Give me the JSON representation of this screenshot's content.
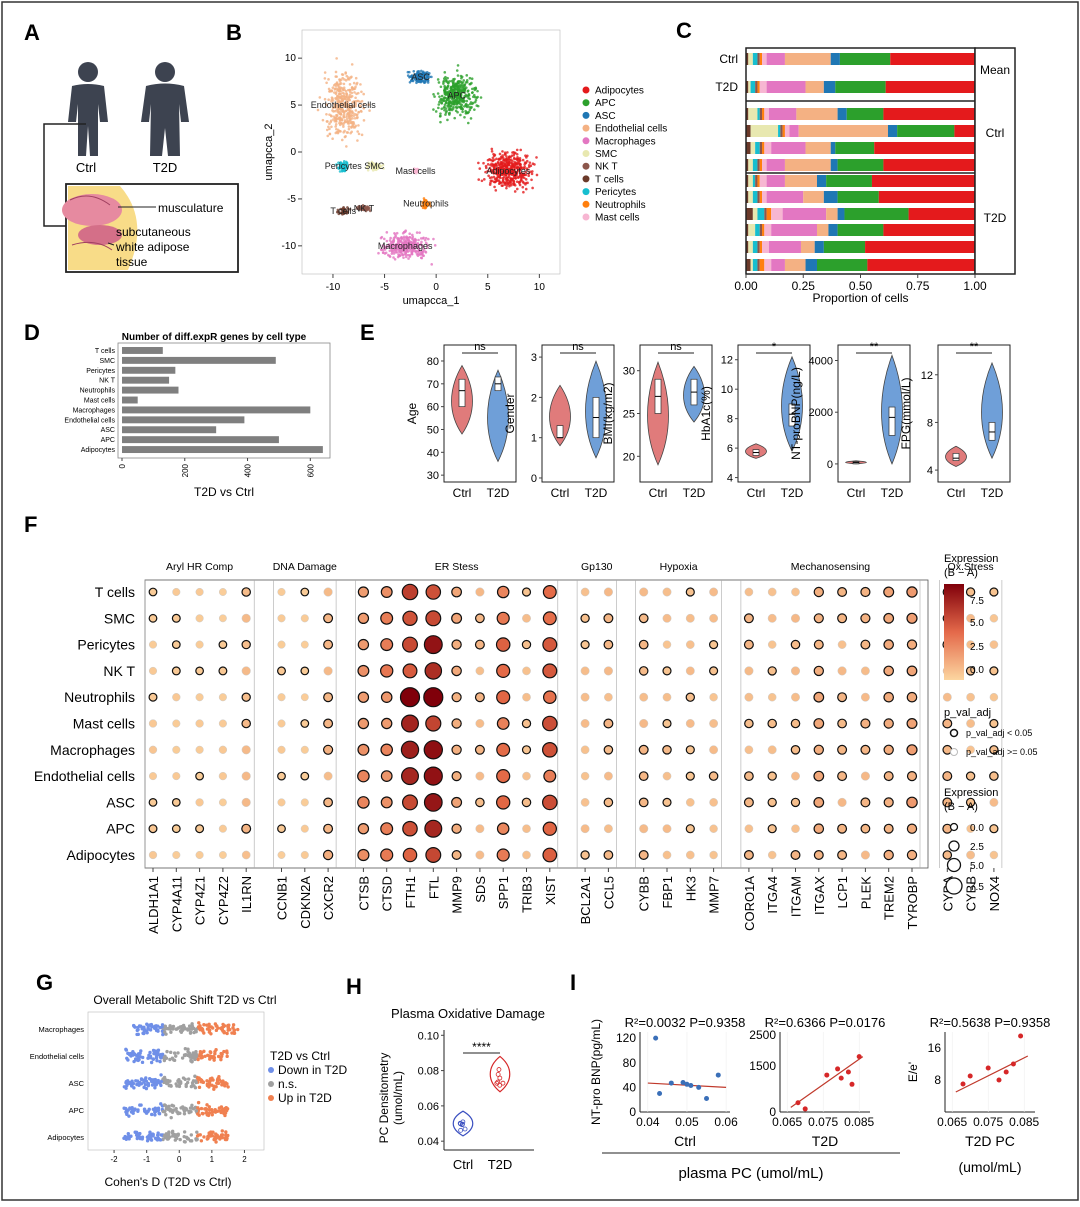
{
  "figure": {
    "panel_labels": [
      "A",
      "B",
      "C",
      "D",
      "E",
      "F",
      "G",
      "H",
      "I"
    ]
  },
  "panelA": {
    "person_labels": [
      "Ctrl",
      "T2D"
    ],
    "tissue_labels": [
      "musculature",
      "subcutaneous",
      "white adipose",
      "tissue"
    ]
  },
  "chart_data": [
    {
      "panel": "B",
      "type": "scatter",
      "title": "",
      "xlabel": "umapcca_1",
      "ylabel": "umapcca_2",
      "xlim": [
        -13,
        12
      ],
      "ylim": [
        -13,
        13
      ],
      "xticks": [
        -10,
        -5,
        0,
        5,
        10
      ],
      "yticks": [
        10,
        5,
        0,
        -5,
        -10
      ],
      "clusters": [
        {
          "name": "Adipocytes",
          "color": "#e41a1c",
          "center": [
            7,
            -2
          ]
        },
        {
          "name": "APC",
          "color": "#2ca02c",
          "center": [
            2,
            6
          ]
        },
        {
          "name": "ASC",
          "color": "#1f77b4",
          "center": [
            -1.5,
            8
          ]
        },
        {
          "name": "Endothelial cells",
          "color": "#f4b183",
          "center": [
            -9,
            5
          ]
        },
        {
          "name": "Macrophages",
          "color": "#e377c2",
          "center": [
            -3,
            -10
          ]
        },
        {
          "name": "SMC",
          "color": "#e8e8b0",
          "center": [
            -6,
            -1.5
          ]
        },
        {
          "name": "NK T",
          "color": "#8c564b",
          "center": [
            -7,
            -6
          ]
        },
        {
          "name": "T cells",
          "color": "#6b3a2a",
          "center": [
            -9,
            -6.3
          ]
        },
        {
          "name": "Pericytes",
          "color": "#17becf",
          "center": [
            -9,
            -1.5
          ]
        },
        {
          "name": "Neutrophils",
          "color": "#ff7f0e",
          "center": [
            -1,
            -5.5
          ]
        },
        {
          "name": "Mast cells",
          "color": "#f7b6d2",
          "center": [
            -2,
            -2
          ]
        }
      ],
      "legend": [
        "Adipocytes",
        "APC",
        "ASC",
        "Endothelial cells",
        "Macrophages",
        "SMC",
        "NK T",
        "T cells",
        "Pericytes",
        "Neutrophils",
        "Mast cells"
      ]
    },
    {
      "panel": "C",
      "type": "bar",
      "orientation": "horizontal-stacked",
      "xlabel": "Proportion of cells",
      "xticks": [
        "0.00",
        "0.25",
        "0.50",
        "0.75",
        "1.00"
      ],
      "xlim": [
        0,
        1
      ],
      "ylabel_top": [
        "Ctrl",
        "T2D"
      ],
      "group_labels": [
        "Mean",
        "Ctrl",
        "T2D"
      ],
      "categories": [
        "T cells",
        "SMC",
        "Pericytes",
        "NK T",
        "Neutrophils",
        "Mast cells",
        "Macrophages",
        "Endothelial cells",
        "ASC",
        "APC",
        "Adipocytes"
      ],
      "colors": [
        "#6b3a2a",
        "#e8e8b0",
        "#17becf",
        "#8c564b",
        "#ff7f0e",
        "#f7b6d2",
        "#e377c2",
        "#f4b183",
        "#1f77b4",
        "#2ca02c",
        "#e41a1c"
      ],
      "rows": [
        {
          "group": "Mean",
          "label": "Ctrl",
          "values": [
            0.01,
            0.02,
            0.02,
            0.01,
            0.01,
            0.02,
            0.08,
            0.2,
            0.04,
            0.22,
            0.37
          ]
        },
        {
          "group": "Mean",
          "label": "T2D",
          "values": [
            0.01,
            0.01,
            0.02,
            0.01,
            0.01,
            0.03,
            0.17,
            0.08,
            0.05,
            0.22,
            0.39
          ]
        },
        {
          "group": "Ctrl",
          "values": [
            0.01,
            0.04,
            0.01,
            0.01,
            0.01,
            0.02,
            0.12,
            0.18,
            0.04,
            0.16,
            0.4
          ]
        },
        {
          "group": "Ctrl",
          "values": [
            0.02,
            0.12,
            0.01,
            0.01,
            0.01,
            0.02,
            0.04,
            0.39,
            0.04,
            0.25,
            0.09
          ]
        },
        {
          "group": "Ctrl",
          "values": [
            0.02,
            0.02,
            0.02,
            0.01,
            0.01,
            0.03,
            0.15,
            0.11,
            0.02,
            0.17,
            0.44
          ]
        },
        {
          "group": "Ctrl",
          "values": [
            0.01,
            0.02,
            0.02,
            0.01,
            0.01,
            0.02,
            0.08,
            0.2,
            0.03,
            0.2,
            0.4
          ]
        },
        {
          "group": "T2D",
          "values": [
            0.01,
            0.02,
            0.01,
            0.01,
            0.01,
            0.03,
            0.08,
            0.14,
            0.04,
            0.2,
            0.45
          ]
        },
        {
          "group": "T2D",
          "values": [
            0.01,
            0.02,
            0.02,
            0.01,
            0.01,
            0.02,
            0.16,
            0.09,
            0.06,
            0.18,
            0.42
          ]
        },
        {
          "group": "T2D",
          "values": [
            0.03,
            0.02,
            0.03,
            0.01,
            0.02,
            0.05,
            0.19,
            0.05,
            0.03,
            0.28,
            0.29
          ]
        },
        {
          "group": "T2D",
          "values": [
            0.01,
            0.03,
            0.02,
            0.01,
            0.01,
            0.03,
            0.2,
            0.05,
            0.04,
            0.2,
            0.4
          ]
        },
        {
          "group": "T2D",
          "values": [
            0.01,
            0.02,
            0.02,
            0.01,
            0.01,
            0.03,
            0.14,
            0.06,
            0.04,
            0.18,
            0.48
          ]
        },
        {
          "group": "T2D",
          "values": [
            0.02,
            0.01,
            0.02,
            0.01,
            0.02,
            0.03,
            0.06,
            0.09,
            0.05,
            0.22,
            0.47
          ]
        }
      ]
    },
    {
      "panel": "D",
      "type": "bar",
      "orientation": "horizontal",
      "title": "Number of diff.expR genes by cell type",
      "xlabel": "T2D vs Ctrl",
      "xticks": [
        0,
        200,
        400,
        600
      ],
      "xlim": [
        0,
        650
      ],
      "categories": [
        "T cells",
        "SMC",
        "Pericytes",
        "NK T",
        "Neutrophils",
        "Mast cells",
        "Macrophages",
        "Endothelial cells",
        "ASC",
        "APC",
        "Adipocytes"
      ],
      "values": [
        130,
        490,
        170,
        150,
        180,
        50,
        600,
        390,
        300,
        500,
        640
      ]
    },
    {
      "panel": "E",
      "type": "violin",
      "groups": [
        "Ctrl",
        "T2D"
      ],
      "panels": [
        {
          "ylabel": "Age",
          "sig": "ns",
          "ylim": [
            27,
            87
          ],
          "yticks": [
            30,
            40,
            50,
            60,
            70,
            80
          ],
          "ctrl": {
            "median": 67,
            "q1": 60,
            "q3": 72,
            "min": 48,
            "max": 78
          },
          "t2d": {
            "median": 70,
            "q1": 67,
            "q3": 73,
            "min": 36,
            "max": 76
          }
        },
        {
          "ylabel": "Gender",
          "sig": "ns",
          "ylim": [
            -0.1,
            3.3
          ],
          "yticks": [
            0,
            1,
            2,
            3
          ],
          "ctrl": {
            "median": 1,
            "q1": 1,
            "q3": 1.3,
            "min": 0.8,
            "max": 2.3
          },
          "t2d": {
            "median": 1.5,
            "q1": 1,
            "q3": 2,
            "min": 0.5,
            "max": 2.9
          }
        },
        {
          "ylabel": "BMI(kg/m2)",
          "sig": "ns",
          "ylim": [
            17,
            33
          ],
          "yticks": [
            20,
            25,
            30
          ],
          "ctrl": {
            "median": 27,
            "q1": 25,
            "q3": 29,
            "min": 19,
            "max": 31
          },
          "t2d": {
            "median": 27.5,
            "q1": 26,
            "q3": 29,
            "min": 24,
            "max": 30.5
          }
        },
        {
          "ylabel": "HbA1c(%)",
          "sig": "*",
          "ylim": [
            3.7,
            13
          ],
          "yticks": [
            4,
            6,
            8,
            10,
            12
          ],
          "ctrl": {
            "median": 5.7,
            "q1": 5.5,
            "q3": 5.9,
            "min": 5.3,
            "max": 6.3
          },
          "t2d": {
            "median": 8.3,
            "q1": 7.5,
            "q3": 9,
            "min": 5.8,
            "max": 12.2
          }
        },
        {
          "ylabel": "NT-proBNP(ng/L)",
          "sig": "**",
          "ylim": [
            -700,
            4600
          ],
          "yticks": [
            0,
            2000,
            4000
          ],
          "ctrl": {
            "median": 50,
            "q1": 20,
            "q3": 80,
            "min": 0,
            "max": 120
          },
          "t2d": {
            "median": 1800,
            "q1": 1100,
            "q3": 2200,
            "min": 0,
            "max": 4200
          }
        },
        {
          "ylabel": "FPG(mmol/L)",
          "sig": "**",
          "ylim": [
            3,
            14.5
          ],
          "yticks": [
            4,
            8,
            12
          ],
          "ctrl": {
            "median": 5,
            "q1": 4.8,
            "q3": 5.4,
            "min": 4.3,
            "max": 6
          },
          "t2d": {
            "median": 7.2,
            "q1": 6.5,
            "q3": 8,
            "min": 5,
            "max": 13
          }
        }
      ]
    },
    {
      "panel": "F",
      "type": "dotplot",
      "rows": [
        "T cells",
        "SMC",
        "Pericytes",
        "NK T",
        "Neutrophils",
        "Mast cells",
        "Macrophages",
        "Endothelial cells",
        "ASC",
        "APC",
        "Adipocytes"
      ],
      "groups": [
        {
          "name": "Aryl HR Comp",
          "genes": [
            "ALDH1A1",
            "CYP4A11",
            "CYP4Z1",
            "CYP4Z2",
            "IL1RN"
          ]
        },
        {
          "name": "DNA Damage",
          "genes": [
            "CCNB1",
            "CDKN2A",
            "CXCR2"
          ]
        },
        {
          "name": "ER Stess",
          "genes": [
            "CTSB",
            "CTSD",
            "FTH1",
            "FTL",
            "MMP9",
            "SDS",
            "SPP1",
            "TRIB3",
            "XIST"
          ]
        },
        {
          "name": "Gp130",
          "genes": [
            "BCL2A1",
            "CCL5"
          ]
        },
        {
          "name": "Hypoxia",
          "genes": [
            "CYBB",
            "FBP1",
            "HK3",
            "MMP7"
          ]
        },
        {
          "name": "Mechanosensing",
          "genes": [
            "CORO1A",
            "ITGA4",
            "ITGAM",
            "ITGAX",
            "LCP1",
            "PLEK",
            "TREM2",
            "TYROBP"
          ]
        },
        {
          "name": "Ox.Stress",
          "genes": [
            "CYBA",
            "CYBB",
            "NOX4"
          ]
        }
      ],
      "legend_color_title": "Expression\n(B − A)",
      "legend_color_ticks": [
        "7.5",
        "5.0",
        "2.5",
        "0.0"
      ],
      "legend_sig_title": "p_val_adj",
      "legend_sig_items": [
        "p_val_adj < 0.05",
        "p_val_adj >= 0.05"
      ],
      "legend_size_title": "Expression\n(B − A)",
      "legend_size_items": [
        "0.0",
        "2.5",
        "5.0",
        "7.5"
      ],
      "gene_base_expr": [
        0.5,
        0.4,
        0.4,
        0.4,
        1.0,
        0.4,
        0.4,
        1.2,
        2.5,
        2.8,
        5.5,
        6.5,
        1.5,
        1.0,
        3.5,
        0.8,
        4.0,
        0.8,
        1.0,
        1.0,
        0.8,
        0.8,
        0.8,
        1.0,
        0.8,
        1.0,
        1.5,
        1.0,
        1.2,
        1.5,
        1.8,
        1.0,
        0.8,
        0.8
      ]
    },
    {
      "panel": "G",
      "type": "scatter",
      "title": "Overall Metabolic Shift T2D vs Ctrl",
      "xlabel": "Cohen's D (T2D vs Ctrl)",
      "xticks": [
        -2,
        -1,
        0,
        1,
        2
      ],
      "xlim": [
        -2.8,
        2.6
      ],
      "categories": [
        "Macrophages",
        "Endothelial cells",
        "ASC",
        "APC",
        "Adipocytes"
      ],
      "legend_title": "T2D vs Ctrl",
      "legend": [
        {
          "name": "Down in T2D",
          "color": "#6f8fe8"
        },
        {
          "name": "n.s.",
          "color": "#a0a0a0"
        },
        {
          "name": "Up in T2D",
          "color": "#f08050"
        }
      ]
    },
    {
      "panel": "H",
      "type": "violin",
      "title": "Plasma Oxidative Damage",
      "ylabel": "PC Densitometry (umol/mL)",
      "sig": "****",
      "groups": [
        "Ctrl",
        "T2D"
      ],
      "ylim": [
        0.035,
        0.103
      ],
      "yticks": [
        "0.10",
        "0.08",
        "0.06",
        "0.04"
      ],
      "ctrl": {
        "median": 0.05,
        "min": 0.043,
        "max": 0.057
      },
      "t2d": {
        "median": 0.076,
        "min": 0.068,
        "max": 0.088
      }
    },
    {
      "panel": "I",
      "type": "scatter",
      "xlabel": "plasma PC (umol/mL)",
      "plots": [
        {
          "stat": "R²=0.0032 P=0.9358",
          "ylabel": "NT-pro BNP(pg/mL)",
          "xsub": "Ctrl",
          "xlim": [
            0.038,
            0.061
          ],
          "ylim": [
            0,
            130
          ],
          "xticks": [
            "0.04",
            "0.05",
            "0.06"
          ],
          "yticks": [
            "120",
            "80",
            "40",
            "0"
          ],
          "color": "#3a6fb8",
          "x": [
            0.042,
            0.043,
            0.046,
            0.049,
            0.05,
            0.051,
            0.053,
            0.055,
            0.058
          ],
          "y": [
            120,
            30,
            47,
            48,
            45,
            43,
            40,
            22,
            60
          ],
          "fit": [
            [
              0.04,
              47
            ],
            [
              0.06,
              40
            ]
          ]
        },
        {
          "stat": "R²=0.6366 P=0.0176",
          "ylabel": "",
          "xsub": "T2D",
          "xlim": [
            0.063,
            0.088
          ],
          "ylim": [
            0,
            2600
          ],
          "xticks": [
            "0.065",
            "0.075",
            "0.085"
          ],
          "yticks": [
            "2500",
            "1500",
            "0"
          ],
          "color": "#d62728",
          "x": [
            0.068,
            0.07,
            0.076,
            0.079,
            0.08,
            0.082,
            0.083,
            0.085
          ],
          "y": [
            300,
            100,
            1200,
            1400,
            1100,
            1300,
            900,
            1800
          ],
          "fit": [
            [
              0.066,
              150
            ],
            [
              0.086,
              1800
            ]
          ]
        },
        {
          "stat": "R²=0.5638 P=0.9358",
          "ylabel": "E/e'",
          "xsub": "T2D PC",
          "xsub2": "(umol/mL)",
          "xlim": [
            0.063,
            0.088
          ],
          "ylim": [
            0,
            20
          ],
          "xticks": [
            "0.065",
            "0.075",
            "0.085"
          ],
          "yticks": [
            "16",
            "8"
          ],
          "color": "#d62728",
          "x": [
            0.068,
            0.07,
            0.075,
            0.078,
            0.08,
            0.082,
            0.084
          ],
          "y": [
            7,
            9,
            11,
            8,
            10,
            12,
            19
          ],
          "fit": [
            [
              0.066,
              5
            ],
            [
              0.086,
              14
            ]
          ]
        }
      ]
    }
  ]
}
